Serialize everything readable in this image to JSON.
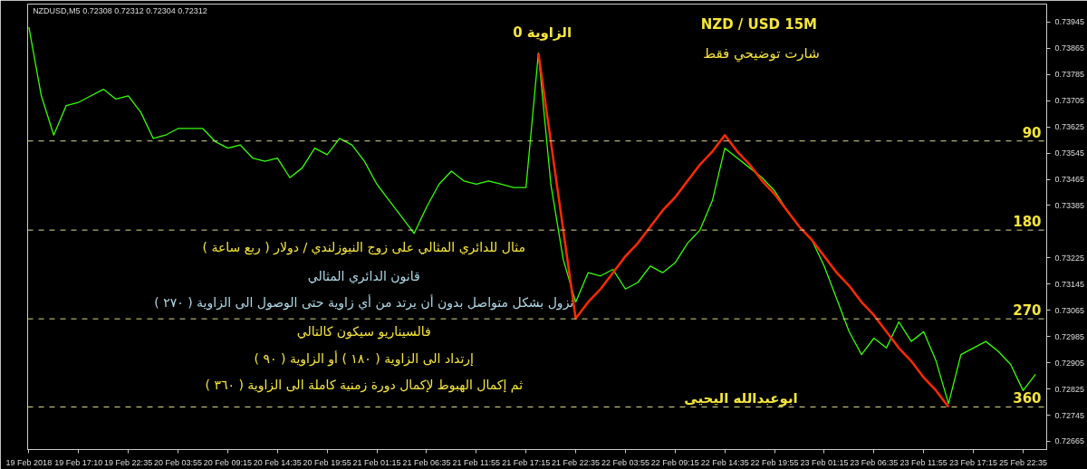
{
  "chart_data": {
    "type": "line",
    "title": "NZD / USD  15M",
    "subtitle": "شارت توضيحي فقط",
    "categories": [
      "19 Feb 2018",
      null,
      null,
      null,
      "19 Feb 17:10",
      null,
      null,
      null,
      "19 Feb 22:35",
      null,
      null,
      null,
      "20 Feb 03:55",
      null,
      null,
      null,
      "20 Feb 09:15",
      null,
      null,
      null,
      "20 Feb 14:35",
      null,
      null,
      null,
      "20 Feb 19:55",
      null,
      null,
      null,
      "21 Feb 01:15",
      null,
      null,
      null,
      "21 Feb 06:35",
      null,
      null,
      null,
      "21 Feb 11:55",
      null,
      null,
      null,
      "21 Feb 17:15",
      null,
      null,
      null,
      "21 Feb 22:35",
      null,
      null,
      null,
      "22 Feb 03:55",
      null,
      null,
      null,
      "22 Feb 09:15",
      null,
      null,
      null,
      "22 Feb 14:35",
      null,
      null,
      null,
      "22 Feb 19:55",
      null,
      null,
      null,
      "23 Feb 01:15",
      null,
      null,
      null,
      "23 Feb 06:35",
      null,
      null,
      null,
      "23 Feb 11:55",
      null,
      null,
      null,
      "23 Feb 17:15",
      null,
      null,
      null,
      "25 Feb 22:35",
      null
    ],
    "series": [
      {
        "color": "#33ff00",
        "values": [
          0.7393,
          0.7372,
          0.736,
          0.7369,
          0.737,
          0.7372,
          0.7374,
          0.7371,
          0.7372,
          0.7367,
          0.7359,
          0.736,
          0.7362,
          0.7362,
          0.7362,
          0.7358,
          0.7356,
          0.7357,
          0.7353,
          0.7352,
          0.7353,
          0.7347,
          0.735,
          0.7356,
          0.7354,
          0.7359,
          0.7357,
          0.7352,
          0.7345,
          0.734,
          0.7335,
          0.733,
          0.7338,
          0.7345,
          0.7349,
          0.7346,
          0.7345,
          0.7346,
          0.7345,
          0.7344,
          0.7344,
          0.7385,
          0.7345,
          0.7322,
          0.7309,
          0.7318,
          0.7317,
          0.7319,
          0.7313,
          0.7315,
          0.732,
          0.7318,
          0.7321,
          0.7327,
          0.7331,
          0.734,
          0.7356,
          0.7353,
          0.735,
          0.7347,
          0.7343,
          0.7337,
          0.7332,
          0.7328,
          0.732,
          0.731,
          0.73,
          0.7293,
          0.7298,
          0.7295,
          0.7303,
          0.7297,
          0.73,
          0.7291,
          0.7278,
          0.7293,
          0.7295,
          0.7297,
          0.7294,
          0.729,
          0.7282,
          0.7287
        ]
      },
      {
        "type": "line",
        "color": "#ff2a00",
        "values": [
          null,
          null,
          null,
          null,
          null,
          null,
          null,
          null,
          null,
          null,
          null,
          null,
          null,
          null,
          null,
          null,
          null,
          null,
          null,
          null,
          null,
          null,
          null,
          null,
          null,
          null,
          null,
          null,
          null,
          null,
          null,
          null,
          null,
          null,
          null,
          null,
          null,
          null,
          null,
          null,
          null,
          0.7385,
          0.7358,
          0.7331,
          0.7304,
          0.7309,
          0.7313,
          0.7318,
          0.7323,
          0.7327,
          0.7332,
          0.7337,
          0.7341,
          0.7346,
          0.7351,
          0.7355,
          0.736,
          0.7355,
          0.7351,
          0.7346,
          0.7342,
          0.7337,
          0.7332,
          0.7328,
          0.7323,
          0.7318,
          0.7314,
          0.7309,
          0.7305,
          0.73,
          0.7295,
          0.7291,
          0.7286,
          0.7282,
          0.7277,
          null,
          null,
          null,
          null,
          null,
          null,
          null
        ]
      }
    ],
    "ylim": [
      0.7264,
      0.74
    ],
    "yticks": [
      0.72665,
      0.72745,
      0.72825,
      0.72905,
      0.72985,
      0.73065,
      0.73145,
      0.73225,
      0.73385,
      0.73465,
      0.73545,
      0.73625,
      0.73705,
      0.73785,
      0.73865,
      0.73945
    ],
    "ref_lines": [
      {
        "axis": "y",
        "value": 0.73582,
        "color": "#d9d98c",
        "line_style": "dashed"
      },
      {
        "axis": "y",
        "value": 0.7331,
        "color": "#d9d98c",
        "line_style": "dashed"
      },
      {
        "axis": "y",
        "value": 0.73039,
        "color": "#d9d98c",
        "line_style": "dashed"
      },
      {
        "axis": "y",
        "value": 0.7277,
        "color": "#d9d98c",
        "line_style": "dashed"
      }
    ],
    "annotations": [
      {
        "text": "الزاوية 0",
        "y": 0.7385
      },
      {
        "text": "90",
        "y": 0.73582
      },
      {
        "text": "180",
        "y": 0.7331
      },
      {
        "text": "270",
        "y": 0.73039
      },
      {
        "text": "360",
        "y": 0.7277
      },
      "NZDUSD,M5  0.72308 0.72312 0.72304 0.72312",
      "مثال للدائري المثالي على زوج النيوزلندي / دولار ( ربع ساعة )",
      "قانون الدائري المثالي",
      "نزول بشكل متواصل بدون أن يرتد من أي زاوية حتى الوصول الى الزاوية ( ٢٧٠ )",
      "فالسيناريو سيكون كالتالي",
      "إرتداد الى الزاوية ( ١٨٠ ) أو الزاوية ( ٩٠ )",
      "ثم إكمال الهبوط لإكمال دورة زمنية كاملة الى الزاوية ( ٣٦٠ )",
      "ابوعبدالله اليحيى"
    ],
    "grid": false,
    "line_style": "solid",
    "marker": "none"
  }
}
